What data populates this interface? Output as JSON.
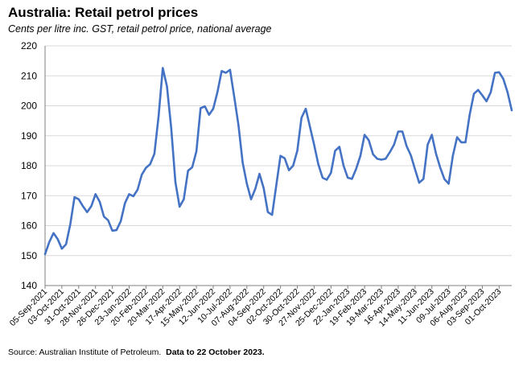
{
  "title": "Australia: Retail petrol prices",
  "subtitle": "Cents per litre inc. GST, retail petrol price, national average",
  "source": {
    "prefix": "Source: Australian Institute of Petroleum.",
    "note": "Data to 22 October 2023."
  },
  "colors": {
    "line": "#4472c4"
  },
  "chart_data": {
    "type": "line",
    "title": "Australia: Retail petrol prices",
    "ylabel": "",
    "xlabel": "",
    "ylim": [
      140,
      220
    ],
    "yticks": [
      140,
      150,
      160,
      170,
      180,
      190,
      200,
      210,
      220
    ],
    "grid": true,
    "legend": "none",
    "x_tick_labels": [
      "05-Sep-2021",
      "03-Oct-2021",
      "31-Oct-2021",
      "28-Nov-2021",
      "26-Dec-2021",
      "23-Jan-2022",
      "20-Feb-2022",
      "20-Mar-2022",
      "17-Apr-2022",
      "15-May-2022",
      "12-Jun-2022",
      "10-Jul-2022",
      "07-Aug-2022",
      "04-Sep-2022",
      "02-Oct-2022",
      "30-Oct-2022",
      "27-Nov-2022",
      "25-Dec-2022",
      "22-Jan-2023",
      "19-Feb-2023",
      "19-Mar-2023",
      "16-Apr-2023",
      "14-May-2023",
      "11-Jun-2023",
      "09-Jul-2023",
      "06-Aug-2023",
      "03-Sep-2023",
      "01-Oct-2023"
    ],
    "series": [
      {
        "values": [
          150.5,
          154.5,
          157.5,
          155.5,
          152.3,
          153.8,
          160.5,
          169.5,
          168.8,
          166.5,
          164.5,
          166.5,
          170.5,
          168.0,
          163.0,
          161.8,
          158.3,
          158.5,
          161.5,
          167.5,
          170.5,
          169.8,
          172.0,
          177.0,
          179.3,
          180.5,
          184.0,
          196.5,
          212.6,
          206.5,
          192.5,
          174.5,
          166.3,
          168.8,
          178.3,
          179.5,
          184.8,
          199.2,
          199.8,
          197.0,
          199.0,
          204.5,
          211.6,
          211.0,
          212.0,
          203.0,
          193.5,
          181.0,
          174.0,
          168.8,
          172.3,
          177.3,
          172.5,
          164.5,
          163.6,
          173.5,
          183.3,
          182.5,
          178.5,
          180.0,
          185.0,
          196.0,
          199.0,
          193.0,
          187.0,
          180.5,
          176.0,
          175.3,
          177.6,
          185.0,
          186.3,
          180.0,
          176.0,
          175.6,
          179.0,
          183.3,
          190.3,
          188.5,
          183.8,
          182.3,
          182.0,
          182.3,
          184.5,
          187.0,
          191.4,
          191.4,
          186.5,
          183.5,
          178.8,
          174.3,
          175.6,
          187.0,
          190.3,
          184.0,
          179.3,
          175.5,
          174.0,
          183.3,
          189.5,
          187.8,
          187.8,
          197.0,
          204.0,
          205.3,
          203.5,
          201.5,
          204.5,
          211.0,
          211.2,
          209.0,
          204.5,
          198.5
        ]
      }
    ]
  }
}
